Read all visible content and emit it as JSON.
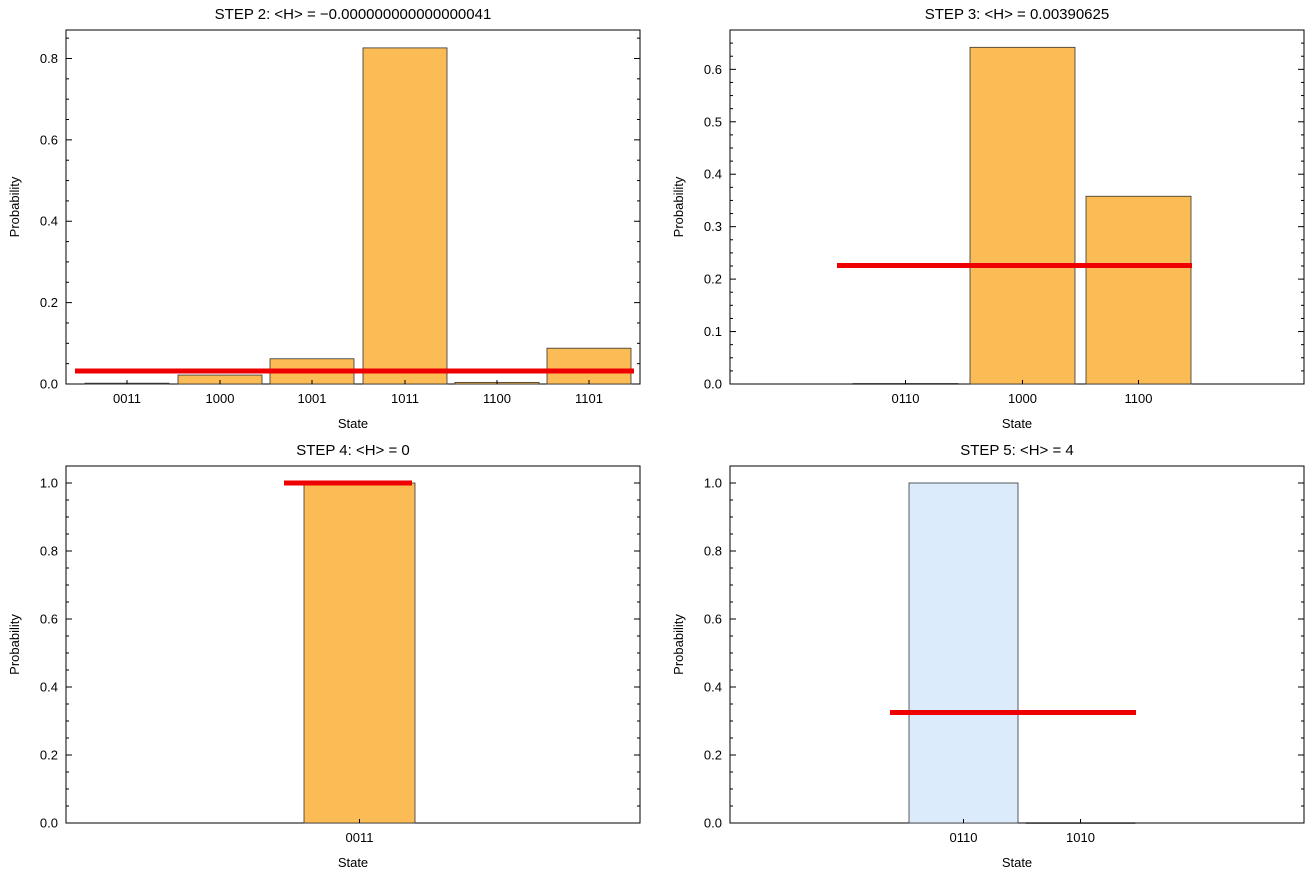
{
  "chart_data": [
    {
      "type": "bar",
      "title": "STEP 2: <H> = −0.000000000000000041",
      "xlabel": "State",
      "ylabel": "Probability",
      "categories": [
        "0011",
        "1000",
        "1001",
        "1011",
        "1100",
        "1101"
      ],
      "values": [
        0.002,
        0.022,
        0.062,
        0.826,
        0.004,
        0.088
      ],
      "bar_color": "#fbbc55",
      "ylim": [
        0,
        0.87
      ],
      "yticks": [
        "0.0",
        "0.2",
        "0.4",
        "0.6",
        "0.8"
      ],
      "reference_line": {
        "value": 0.032,
        "color": "#ee0000"
      }
    },
    {
      "type": "bar",
      "title": "STEP 3: <H> = 0.00390625",
      "xlabel": "State",
      "ylabel": "Probability",
      "categories": [
        "0110",
        "1000",
        "1100"
      ],
      "values": [
        0.001,
        0.642,
        0.358
      ],
      "bar_color": "#fbbc55",
      "ylim": [
        0,
        0.675
      ],
      "yticks": [
        "0.0",
        "0.1",
        "0.2",
        "0.3",
        "0.4",
        "0.5",
        "0.6"
      ],
      "reference_line": {
        "value": 0.226,
        "color": "#ee0000"
      }
    },
    {
      "type": "bar",
      "title": "STEP 4: <H> = 0",
      "xlabel": "State",
      "ylabel": "Probability",
      "categories": [
        "0011"
      ],
      "values": [
        1.0
      ],
      "bar_color": "#fbbc55",
      "ylim": [
        0,
        1.05
      ],
      "yticks": [
        "0.0",
        "0.2",
        "0.4",
        "0.6",
        "0.8",
        "1.0"
      ],
      "reference_line": {
        "value": 1.0,
        "color": "#ee0000"
      }
    },
    {
      "type": "bar",
      "title": "STEP 5: <H> = 4",
      "xlabel": "State",
      "ylabel": "Probability",
      "categories": [
        "0110",
        "1010"
      ],
      "values": [
        1.0,
        0.001
      ],
      "bar_color": "#dbebfc",
      "ylim": [
        0,
        1.05
      ],
      "yticks": [
        "0.0",
        "0.2",
        "0.4",
        "0.6",
        "0.8",
        "1.0"
      ],
      "reference_line": {
        "value": 0.325,
        "color": "#ee0000"
      }
    }
  ]
}
